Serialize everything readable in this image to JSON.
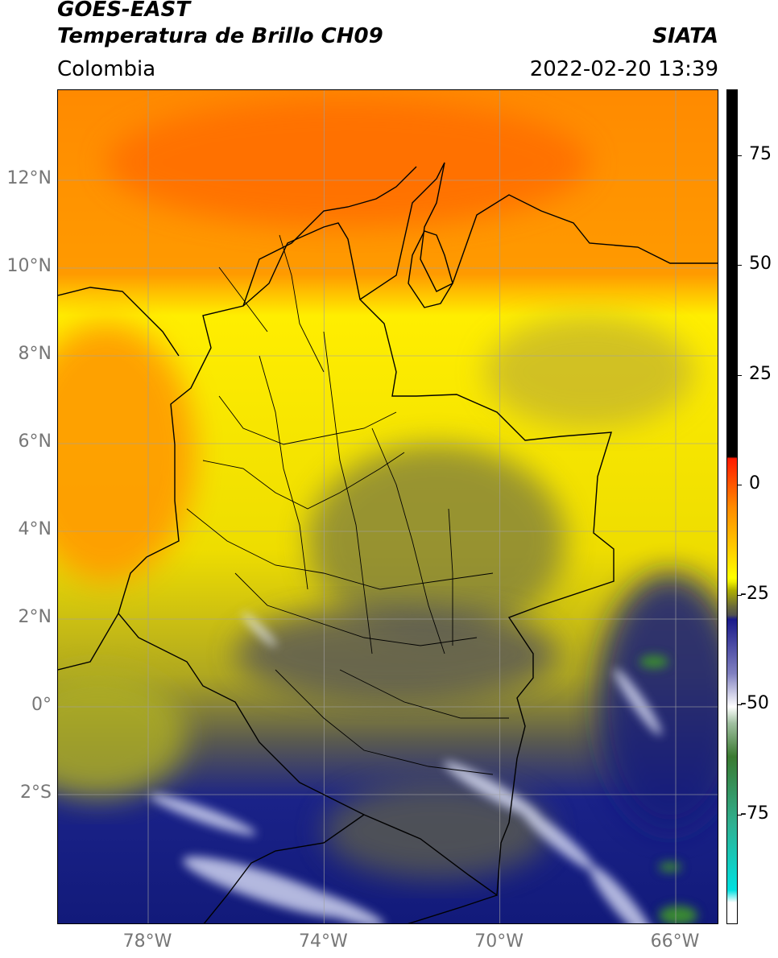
{
  "header": {
    "title_line1": "GOES-EAST",
    "title_line2": "Temperatura de Brillo CH09",
    "source": "SIATA",
    "region": "Colombia",
    "datetime": "2022-02-20 13:39"
  },
  "map": {
    "extent": {
      "lon_min": -80,
      "lon_max": -65,
      "lat_min": -5,
      "lat_max": 14
    },
    "lat_ticks": [
      {
        "value": 12,
        "label": "12°N"
      },
      {
        "value": 10,
        "label": "10°N"
      },
      {
        "value": 8,
        "label": "8°N"
      },
      {
        "value": 6,
        "label": "6°N"
      },
      {
        "value": 4,
        "label": "4°N"
      },
      {
        "value": 2,
        "label": "2°N"
      },
      {
        "value": 0,
        "label": "0°"
      },
      {
        "value": -2,
        "label": "2°S"
      }
    ],
    "lon_ticks": [
      {
        "value": -78,
        "label": "78°W"
      },
      {
        "value": -74,
        "label": "74°W"
      },
      {
        "value": -70,
        "label": "70°W"
      },
      {
        "value": -66,
        "label": "66°W"
      }
    ],
    "colors": {
      "warm_orange": "#ff7a00",
      "orange": "#ff9a00",
      "yellow": "#ffee00",
      "olive": "#9a9a20",
      "gray_olive": "#6a6a40",
      "navy": "#101a80",
      "white": "#ffffff",
      "green": "#3a8a30"
    }
  },
  "colorbar": {
    "range": [
      -100,
      90
    ],
    "ticks": [
      {
        "value": 75,
        "label": "75"
      },
      {
        "value": 50,
        "label": "50"
      },
      {
        "value": 25,
        "label": "25"
      },
      {
        "value": 0,
        "label": "0"
      },
      {
        "value": -25,
        "label": "-25"
      },
      {
        "value": -50,
        "label": "-50"
      },
      {
        "value": -75,
        "label": "-75"
      }
    ]
  }
}
